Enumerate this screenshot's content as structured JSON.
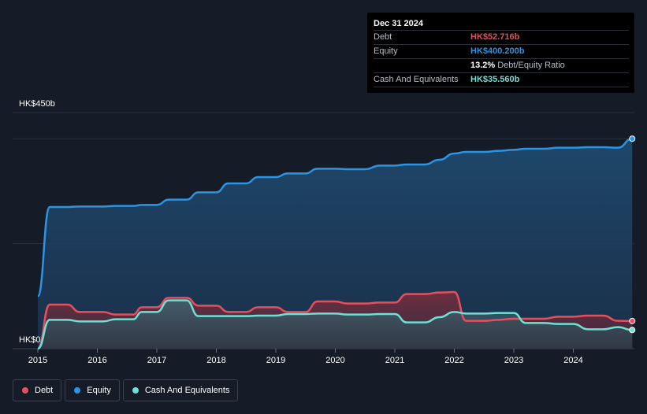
{
  "chart_data": {
    "type": "area",
    "title": "",
    "currency_unit": "HK$ (billions)",
    "y_axis_top_label": "HK$450b",
    "y_axis_bottom_label": "HK$0",
    "ylim": [
      0,
      450
    ],
    "xlim": [
      2015.0,
      2025.0
    ],
    "x_ticks": [
      "2015",
      "2016",
      "2017",
      "2018",
      "2019",
      "2020",
      "2021",
      "2022",
      "2023",
      "2024"
    ],
    "series": [
      {
        "name": "Debt",
        "color": "#e4505d",
        "x": [
          2015.0,
          2015.2,
          2015.5,
          2015.7,
          2016.1,
          2016.3,
          2016.6,
          2016.75,
          2017.0,
          2017.2,
          2017.5,
          2017.7,
          2018.0,
          2018.2,
          2018.5,
          2018.7,
          2019.0,
          2019.2,
          2019.5,
          2019.7,
          2020.0,
          2020.2,
          2020.5,
          2020.75,
          2021.0,
          2021.2,
          2021.5,
          2021.75,
          2022.0,
          2022.2,
          2022.5,
          2022.75,
          2023.0,
          2023.2,
          2023.5,
          2023.75,
          2024.0,
          2024.25,
          2024.5,
          2024.75,
          2024.99
        ],
        "values": [
          0,
          84,
          84,
          70,
          70,
          65,
          65,
          79,
          79,
          97,
          97,
          82,
          82,
          70,
          70,
          79,
          79,
          70,
          70,
          90,
          90,
          86,
          86,
          88,
          88,
          104,
          104,
          107,
          108,
          53,
          53,
          55,
          57,
          57,
          57,
          61,
          61,
          63,
          63,
          53,
          52.716
        ]
      },
      {
        "name": "Equity",
        "color": "#2b94e4",
        "x": [
          2015.0,
          2015.2,
          2015.5,
          2015.7,
          2016.1,
          2016.3,
          2016.6,
          2016.75,
          2017.0,
          2017.2,
          2017.5,
          2017.7,
          2018.0,
          2018.2,
          2018.5,
          2018.7,
          2019.0,
          2019.2,
          2019.5,
          2019.7,
          2020.0,
          2020.2,
          2020.5,
          2020.75,
          2021.0,
          2021.2,
          2021.5,
          2021.75,
          2022.0,
          2022.2,
          2022.5,
          2022.75,
          2023.0,
          2023.2,
          2023.5,
          2023.75,
          2024.0,
          2024.25,
          2024.5,
          2024.75,
          2024.99
        ],
        "values": [
          100,
          270,
          270,
          271,
          271,
          272,
          272,
          274,
          274,
          284,
          284,
          298,
          298,
          315,
          315,
          327,
          327,
          334,
          334,
          343,
          343,
          342,
          342,
          349,
          349,
          351,
          351,
          360,
          372,
          375,
          375,
          377,
          379,
          381,
          381,
          383,
          383,
          384,
          384,
          383,
          400.2
        ]
      },
      {
        "name": "Cash And Equivalents",
        "color": "#6ee0d4",
        "x": [
          2015.0,
          2015.2,
          2015.5,
          2015.7,
          2016.1,
          2016.3,
          2016.6,
          2016.75,
          2017.0,
          2017.2,
          2017.5,
          2017.7,
          2018.0,
          2018.2,
          2018.5,
          2018.7,
          2019.0,
          2019.2,
          2019.5,
          2019.7,
          2020.0,
          2020.2,
          2020.5,
          2020.75,
          2021.0,
          2021.2,
          2021.5,
          2021.75,
          2022.0,
          2022.2,
          2022.5,
          2022.75,
          2023.0,
          2023.2,
          2023.5,
          2023.75,
          2024.0,
          2024.25,
          2024.5,
          2024.75,
          2024.99
        ],
        "values": [
          0,
          55,
          55,
          52,
          52,
          56,
          56,
          70,
          70,
          92,
          92,
          62,
          62,
          62,
          62,
          63,
          63,
          66,
          66,
          67,
          67,
          65,
          65,
          66,
          66,
          50,
          50,
          60,
          70,
          67,
          67,
          68,
          68,
          49,
          49,
          47,
          47,
          37,
          37,
          41,
          35.56
        ]
      }
    ],
    "legend": [
      "Debt",
      "Equity",
      "Cash And Equivalents"
    ],
    "legend_position": "bottom-left"
  },
  "tooltip": {
    "date": "Dec 31 2024",
    "debt_label": "Debt",
    "debt_value": "HK$52.716b",
    "equity_label": "Equity",
    "equity_value": "HK$400.200b",
    "ratio_value": "13.2%",
    "ratio_label": "Debt/Equity Ratio",
    "cash_label": "Cash And Equivalents",
    "cash_value": "HK$35.560b"
  },
  "legend": {
    "debt": "Debt",
    "equity": "Equity",
    "cash": "Cash And Equivalents"
  },
  "colors": {
    "debt": "#e4505d",
    "equity": "#2b94e4",
    "cash": "#6ee0d4",
    "background": "#151b27"
  }
}
